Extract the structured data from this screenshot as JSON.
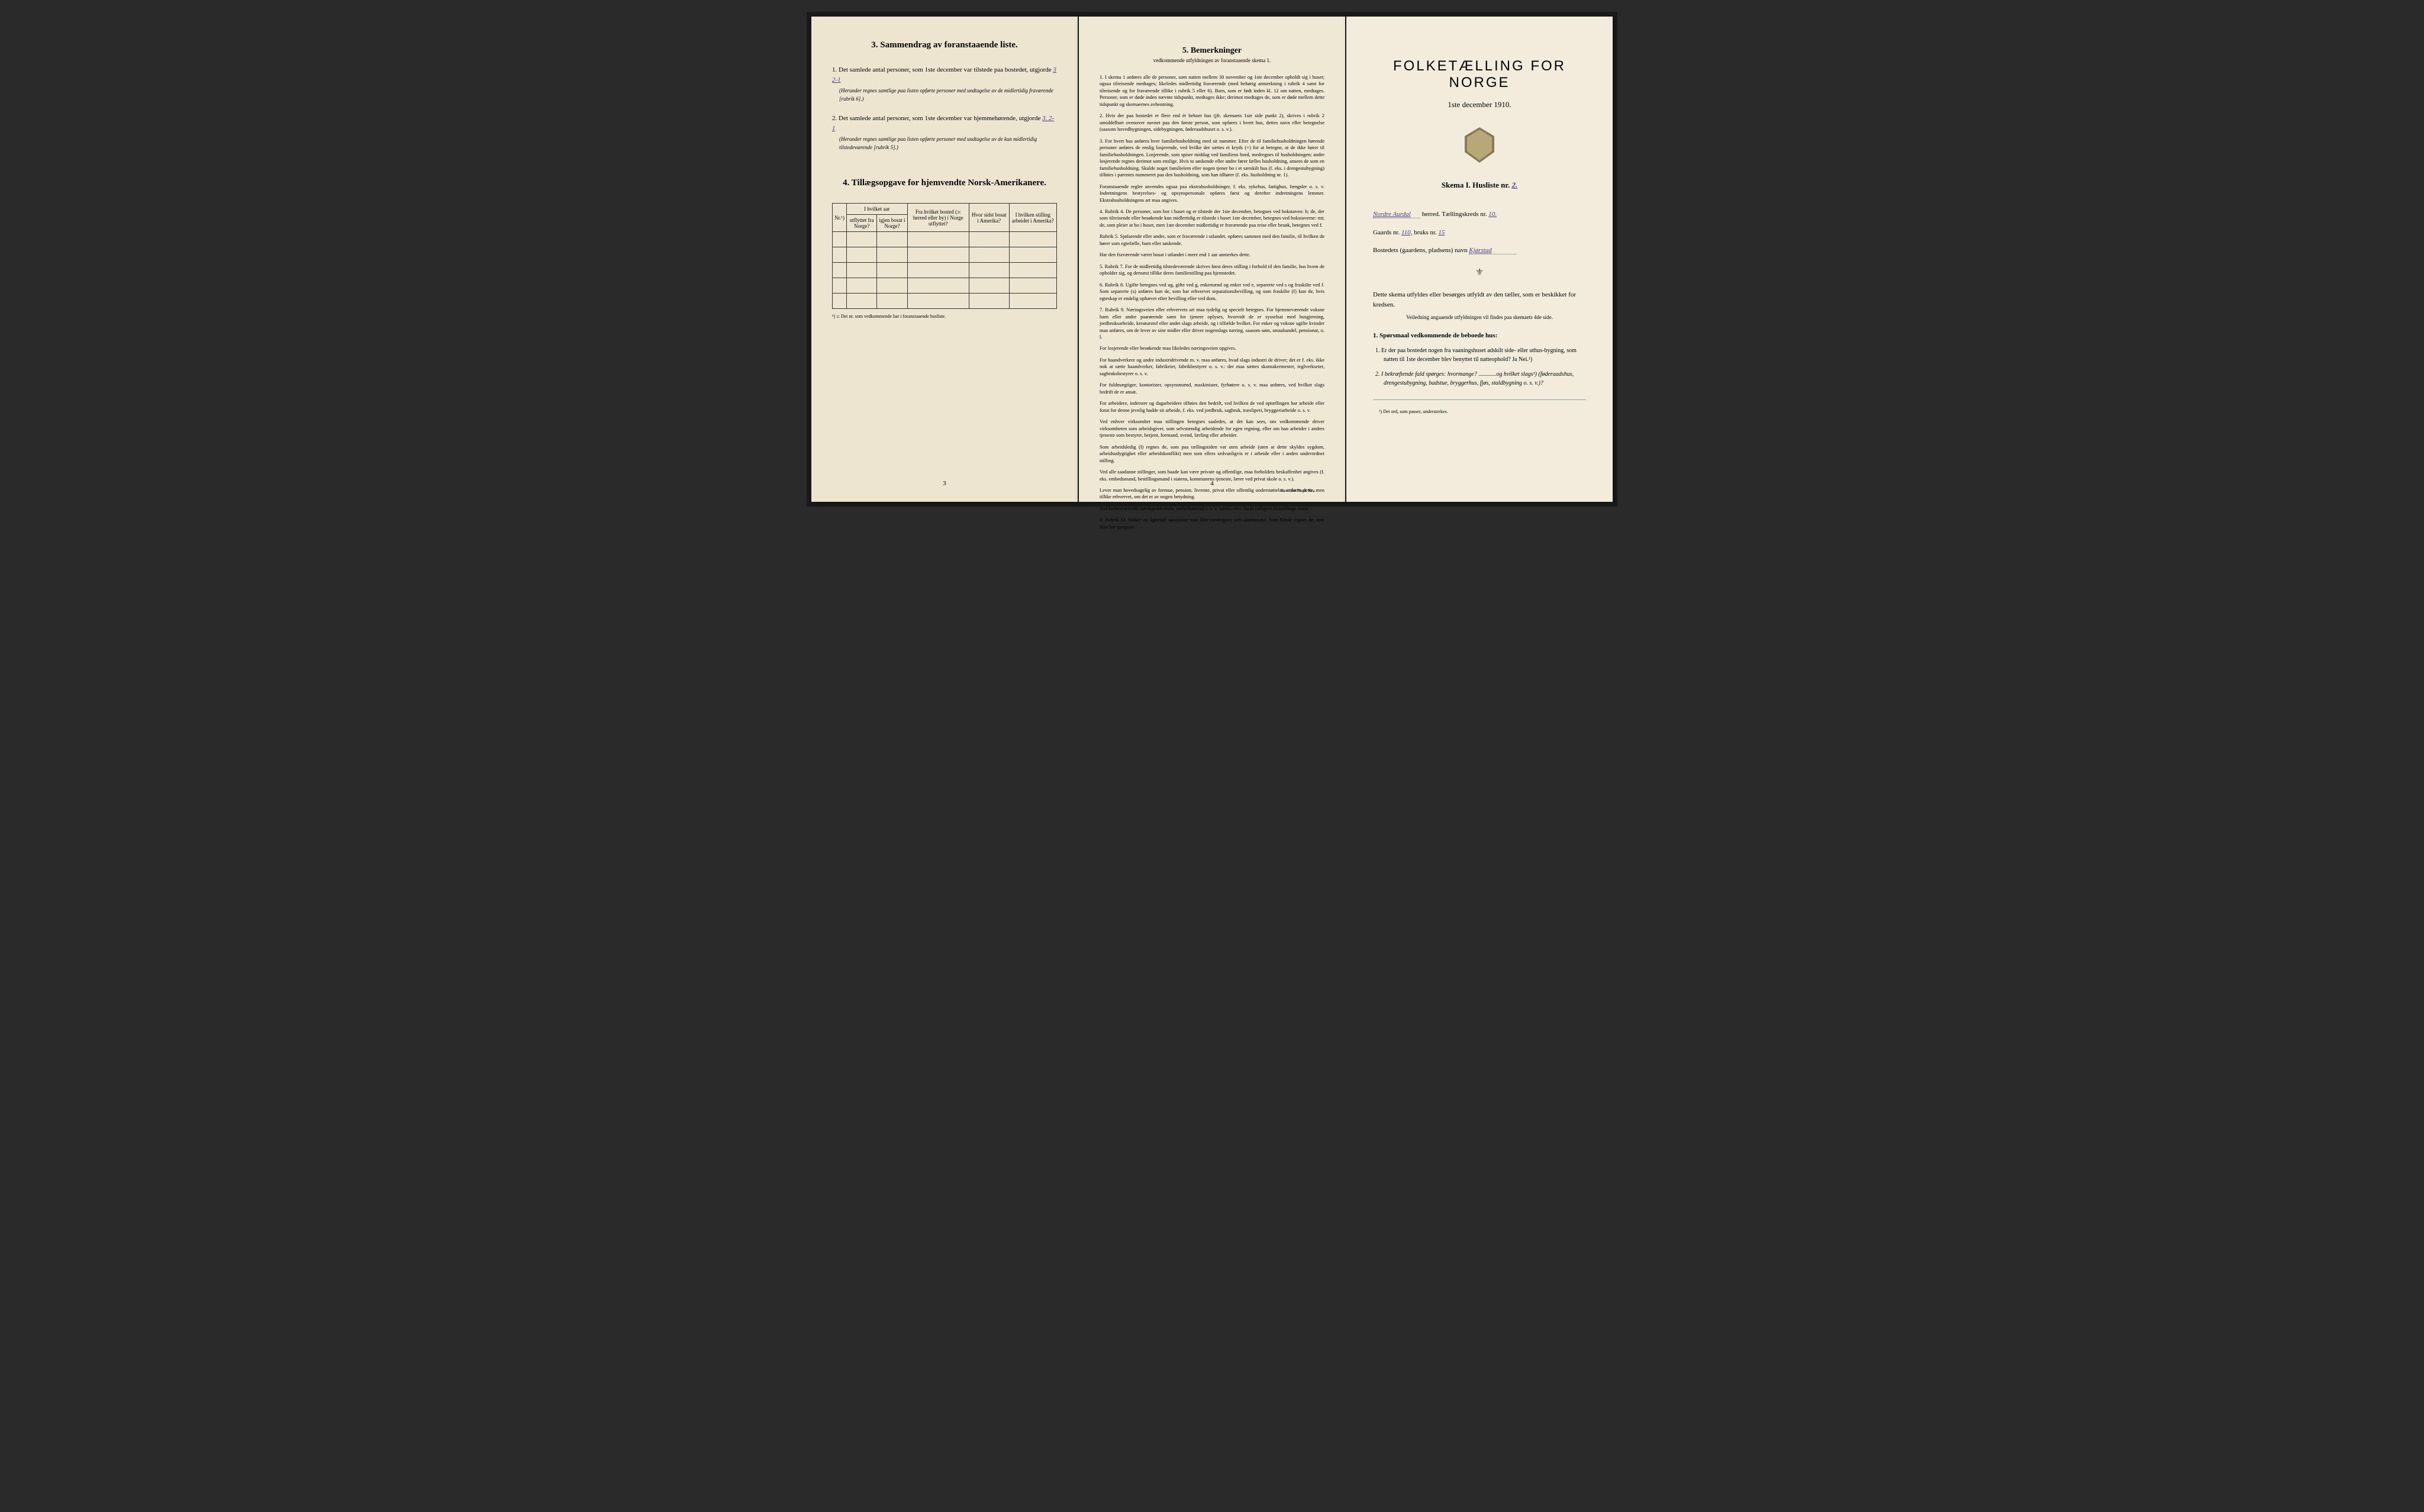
{
  "page1": {
    "section3_title": "3.  Sammendrag av foranstaaende liste.",
    "item1_text": "Det samlede antal personer, som 1ste december var tilstede paa bostedet, utgjorde",
    "item1_value": "3      2-1",
    "item1_note": "(Herunder regnes samtlige paa listen opførte personer med undtagelse av de midlertidig fraværende [rubrik 6].)",
    "item2_text": "Det samlede antal personer, som 1ste december var hjemmehørende, utgjorde",
    "item2_value": "3.     2-1",
    "item2_note": "(Herunder regnes samtlige paa listen opførte personer med undtagelse av de kun midlertidig tilstedeværende [rubrik 5].)",
    "section4_title": "4.  Tillægsopgave for hjemvendte Norsk-Amerikanere.",
    "table": {
      "headers": {
        "nr": "Nr.¹)",
        "col1_top": "I hvilket aar",
        "col1a": "utflyttet fra Norge?",
        "col1b": "igjen bosat i Norge?",
        "col2": "Fra hvilket bosted (ɔ: herred eller by) i Norge utflyttet?",
        "col3": "Hvor sidst bosat i Amerika?",
        "col4": "I hvilken stilling arbeidet i Amerika?"
      }
    },
    "footnote": "¹) ɔ: Det nr. som vedkommende har i foranstaaende husliste.",
    "page_num": "3"
  },
  "page2": {
    "title": "5.  Bemerkninger",
    "subtitle": "vedkommende utfyldningen av foranstaaende skema 1.",
    "items": [
      "1. I skema 1 anføres alle de personer, som natten mellem 30 november og 1ste december opholdt sig i huset; ogsaa tilreisende medtages; likeledes midlertidig fraværende (med behørig anmerkning i rubrik 4 samt for tilreisende og for fraværende tillike i rubrik 5 eller 6). Barn, som er født inden kl. 12 om natten, medtages. Personer, som er døde inden nævnte tidspunkt, medtages ikke; derimot medtages de, som er døde mellem dette tidspunkt og skemaernes avhentning.",
      "2. Hvis der paa bostedet er flere end ét beboet hus (jfr. skemaets 1ste side punkt 2), skrives i rubrik 2 umiddelbart ovenover navnet paa den første person, som opføres i hvert hus, dettes navn eller betegnelse (saasom hovedbygningen, sidebygningen, føderaadshuset o. s. v.).",
      "3. For hvert hus anføres hver familiehusholdning med sit nummer. Efter de til familiehusholdningen hørende personer anføres de enslig losjerende, ved hvilke der sættes et kryds (×) for at betegne, at de ikke hører til familiehusholdningen. Losjerende, som spiser middag ved familiens bord, medregnes til husholdningen; andre losjerende regnes derimot som enslige. Hvis to søskende eller andre fører fælles husholdning, ansees de som en familiehusholdning. Skulde noget familielem eller nogen tjener bo i et særskilt hus (f. eks. i drengestubygning) tilføies i parentes nummeret paa den husholdning, som han tilhører (f. eks. husholdning nr. 1).",
      "Foranstaaende regler anvendes ogsaa paa ekstrahusholdninger, f. eks. sykehus, fattighus, fængsler o. s. v. Indretningens bestyrelses- og opsynspersonale opføres først og derefter indretningens lemmer. Ekstrahusholdningens art maa angives.",
      "4. Rubrik 4. De personer, som bor i huset og er tilstede der 1ste december, betegnes ved bokstaven: b; de, der som tilreisende eller besøkende kun midlertidig er tilstede i huset 1ste december, betegnes ved bokstaverne: mt; de, som pleier at bo i huset, men 1ste december midlertidig er fraværende paa reise eller besøk, betegnes ved f.",
      "Rubrik 5. Sjøfarende eller andre, som er fraværende i utlandet, opføres sammen med den familie, til hvilken de hører som egtefælle, barn eller søskende.",
      "Har den fraværende været bosat i utlandet i mere end 1 aar anmerkes dette.",
      "5. Rubrik 7. For de midlertidig tilstedeværende skrives først deres stilling i forhold til den familie, hos hvem de opholder sig, og dernæst tillike deres familiestilling paa hjemstedet.",
      "6. Rubrik 8. Ugifte betegnes ved ug, gifte ved g, enkemænd og enker ved e, separerte ved s og fraskilte ved f. Som separerte (s) anføres kun de, som har erhvervet separationsbevilling, og som fraskilte (f) kun de, hvis egteskap er endelig ophævet efter bevilling eller ved dom.",
      "7. Rubrik 9. Næringsveien eller erhvervets art maa tydelig og specielt betegnes. For hjemmeværende voksne barn eller andre paarørende samt for tjenere oplyses, hvorvidt de er sysselsat med husgjerning, jordbruksarbeide, kreaturstol eller andet slags arbeide, og i tilfælde hvilket. For enker og voksne ugifte kvinder maa anføres, om de lever av sine midler eller driver nogenslags næring, saasom søm, smaahandel, pensionat, o. l.",
      "For losjerende eller besøkende maa likeledes næringsveien opgives.",
      "For haandverkere og andre industridrivende m. v. maa anføres, hvad slags industri de driver; det er f. eks. ikke nok at sætte haandverker, fabrikeier, fabrikbestyrer o. s. v.: der maa sættes skomakermester, teglverkseier, sagbruksbestyrer o. s. v.",
      "For fuldmægtiger, kontorister, opsynsmænd, maskinister, fyrbøtere o. s. v. maa anføres, ved hvilket slags bedrift de er ansat.",
      "For arbeidere, inderster og dagarbeidere tilføies den bedrift, ved hvilken de ved optællingen har arbeide eller forut for denne jevnlig hadde sit arbeide, f. eks. ved jordbruk, sagbruk, træsliperi, bryggeriarbeide o. s. v.",
      "Ved enhver virksomhet maa stillingen betegnes saaledes, at det kan sees, om vedkommende driver virksomheten som arbeidsgiver, som selvstændig arbeidende for egen regning, eller om han arbeider i andres tjeneste som bestyrer, betjent, formand, svend, lærling eller arbeider.",
      "Som arbeidsledig (l) regnes de, som paa tællingstiden var uten arbeide (uten at dette skyldes sygdom, arbeidsudygtighet eller arbeidskonflikt) men som ellers sedvanligvis er i arbeide eller i anden underordnet stilling.",
      "Ved alle saadanne stillinger, som baade kan være private og offentlige, maa forholdets beskaffenhet angives (f. eks. embedsmand, bestillingsmand i statens, kommunens tjeneste, lærer ved privat skole o. s. v.).",
      "Lever man hovedsagelig av formue, pension, livrente, privat eller offentlig understøttelse, anføres dette, men tillike erhvervet, om det er av nogen betydning.",
      "Ved forhenværende næringsdrivende, embedsmænd o. s. v. sættes «fv» foran tidligere livsstillings navn.",
      "8. Rubrik 14. Sinker og lignende aandsløve maa ikke medregnes som aandssvake. Som blinde regnes de, som ikke har gangsyn."
    ],
    "page_num": "4",
    "publisher": "Steen'ske Bogtr. Kra."
  },
  "page3": {
    "main_title": "FOLKETÆLLING FOR NORGE",
    "date": "1ste december 1910.",
    "skema": "Skema I.  Husliste nr.",
    "skema_value": "2.",
    "herred_value": "Nordre Aurdal",
    "herred_label": "herred.  Tællingskreds nr.",
    "kreds_value": "10.",
    "gaards_label": "Gaards nr.",
    "gaards_value": "110,",
    "bruks_label": "bruks nr.",
    "bruks_value": "15",
    "bosted_label": "Bostedets (gaardens, pladsens) navn",
    "bosted_value": "Kjørstad",
    "instructions": "Dette skema utfyldes eller besørges utfyldt av den tæller, som er beskikket for kredsen.",
    "instructions_sub": "Veiledning angaaende utfyldningen vil findes paa skemaets 4de side.",
    "sporsmaal_title": "1. Spørsmaal vedkommende de beboede hus:",
    "sporsmaal_1": "1. Er der paa bostedet nogen fra vaaningshuset adskilt side- eller uthus-bygning, som natten til 1ste december blev benyttet til natteophold?   Ja   Nei.¹)",
    "sporsmaal_2": "2. I bekræftende fald spørges: hvormange? ............og hvilket slags¹) (føderaadshus, drengestubygning, badstue, bryggerhus, fjøs, staldbygning o. s. v.)?",
    "footnote": "¹) Det ord, som passer, understrekes."
  }
}
